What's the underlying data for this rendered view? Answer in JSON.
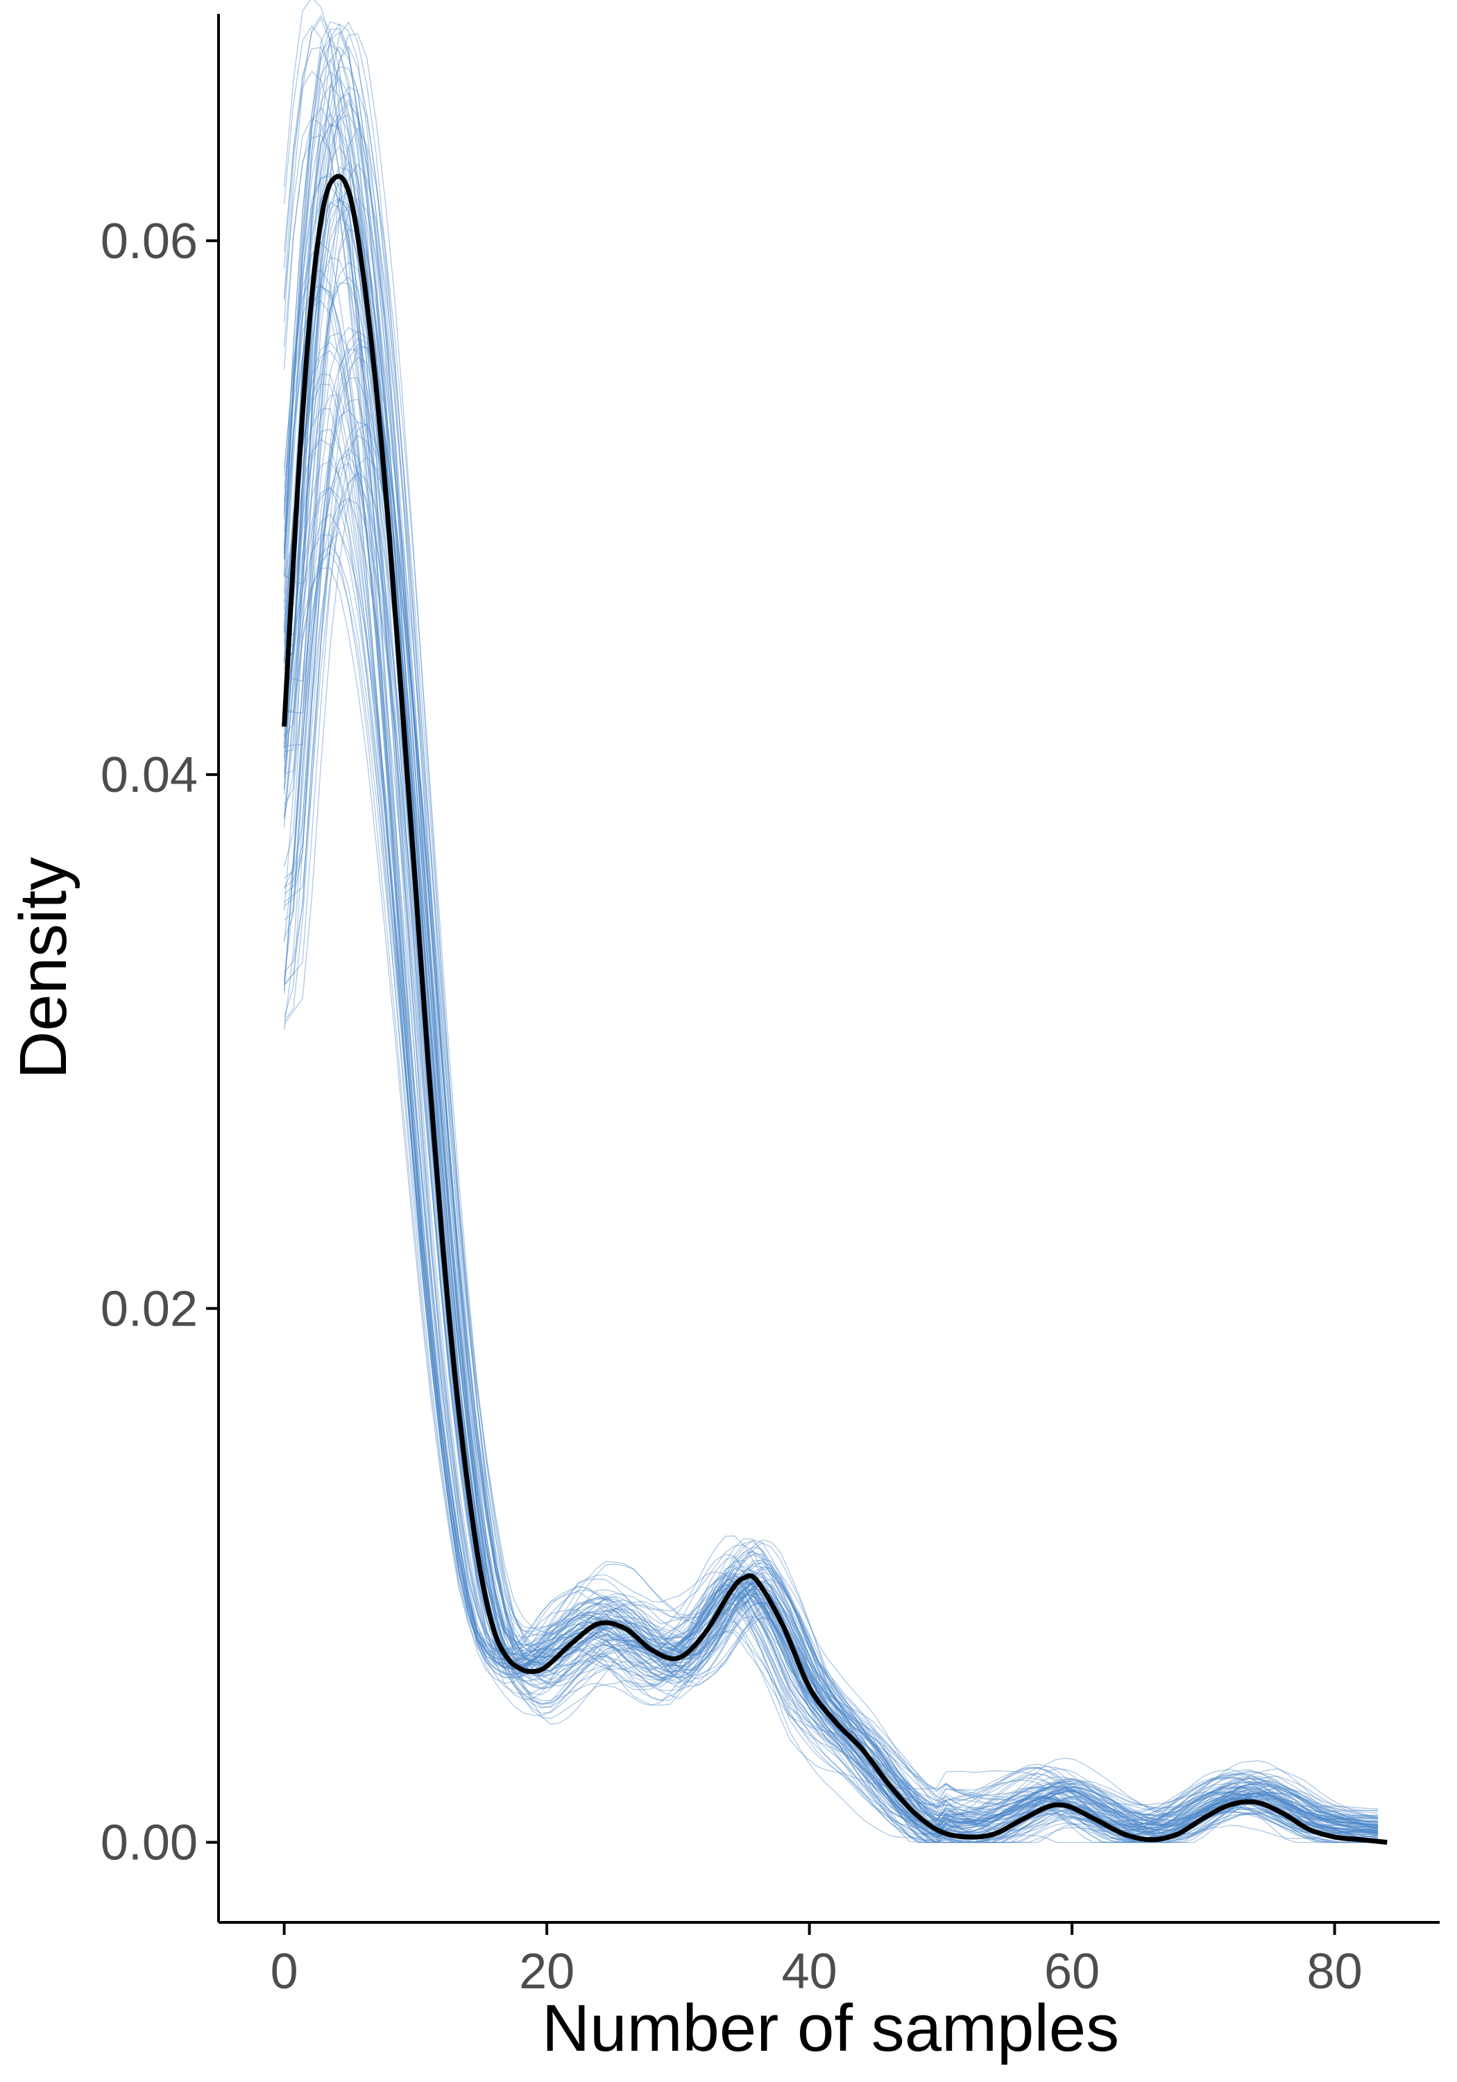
{
  "chart_data": {
    "type": "line",
    "title": "",
    "xlabel": "Number of samples",
    "ylabel": "Density",
    "xlim": [
      -5,
      88
    ],
    "ylim": [
      -0.003,
      0.0685
    ],
    "x_ticks": [
      0,
      20,
      40,
      60,
      80
    ],
    "x_tick_labels": [
      "0",
      "20",
      "40",
      "60",
      "80"
    ],
    "y_ticks": [
      0.0,
      0.02,
      0.04,
      0.06
    ],
    "y_tick_labels": [
      "0.00",
      "0.02",
      "0.04",
      "0.06"
    ],
    "grid": false,
    "legend": "none",
    "colors": {
      "observed": "#000000",
      "replicates": "#4a86c8"
    },
    "replicate_count": 100,
    "observed": {
      "x": [
        0,
        1,
        2,
        3,
        4,
        5,
        6,
        7,
        8,
        9,
        10,
        11,
        12,
        13,
        14,
        15,
        16,
        17,
        18,
        19,
        20,
        22,
        24,
        26,
        28,
        30,
        32,
        34,
        35,
        36,
        38,
        40,
        42,
        44,
        46,
        48,
        50,
        52,
        54,
        56,
        58,
        59,
        60,
        62,
        64,
        66,
        68,
        70,
        72,
        74,
        76,
        78,
        80,
        82,
        84
      ],
      "y": [
        0.0418,
        0.0505,
        0.0574,
        0.0613,
        0.0624,
        0.0617,
        0.0588,
        0.0545,
        0.049,
        0.0425,
        0.0358,
        0.029,
        0.0228,
        0.0175,
        0.0133,
        0.01,
        0.0079,
        0.0069,
        0.0065,
        0.0064,
        0.0066,
        0.0075,
        0.0082,
        0.008,
        0.0072,
        0.0069,
        0.0078,
        0.0094,
        0.0099,
        0.0098,
        0.0081,
        0.0058,
        0.0045,
        0.0035,
        0.0022,
        0.0011,
        0.0004,
        0.0002,
        0.0003,
        0.0008,
        0.0013,
        0.0014,
        0.0013,
        0.0008,
        0.0003,
        0.0001,
        0.0003,
        0.0009,
        0.0014,
        0.0015,
        0.0011,
        0.0005,
        0.0002,
        0.0001,
        0.0
      ]
    }
  }
}
